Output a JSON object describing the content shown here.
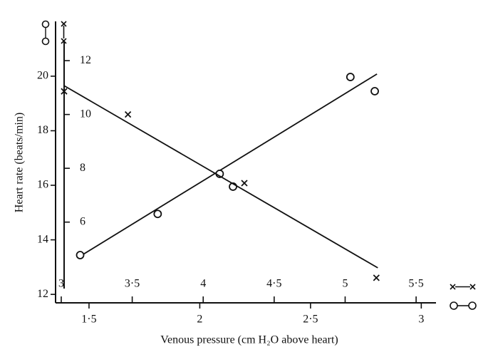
{
  "chart_data": {
    "type": "scatter",
    "x_label": "Venous pressure (cm H₂O above heart)",
    "y_label": "Heart rate (beats/min)",
    "xlim": [
      1.349,
      3.06
    ],
    "xticks": [
      {
        "value": 1.5,
        "label": "1·5"
      },
      2,
      {
        "value": 2.5,
        "label": "2·5"
      },
      3
    ],
    "x2lim": [
      2.96,
      5.63
    ],
    "x2ticks": [
      3,
      {
        "value": 3.5,
        "label": "3·5"
      },
      4,
      {
        "value": 4.5,
        "label": "4·5"
      },
      5,
      {
        "value": 5.5,
        "label": "5·5"
      }
    ],
    "ylim": [
      11.69,
      22.01
    ],
    "yticks": [
      12,
      14,
      16,
      18,
      20
    ],
    "y2lim": [
      3.0,
      13.46
    ],
    "y2ticks": [
      6,
      8,
      10,
      12
    ],
    "color": "#111111",
    "series": [
      {
        "marker": "circle",
        "x": [
          1.46,
          1.81,
          2.09,
          2.15,
          2.68,
          2.79
        ],
        "values": [
          13.44,
          14.95,
          16.42,
          15.95,
          19.97,
          19.45
        ],
        "fit": {
          "x": [
            1.46,
            2.8
          ],
          "y": [
            13.4,
            20.08
          ]
        }
      },
      {
        "marker": "cross",
        "axis": "y2",
        "x": [
          3.02,
          3.47,
          4.29,
          5.22
        ],
        "values": [
          10.86,
          10.0,
          7.45,
          3.93
        ],
        "fit": {
          "x": [
            3.02,
            5.23
          ],
          "y": [
            11.07,
            4.3
          ]
        }
      }
    ]
  }
}
